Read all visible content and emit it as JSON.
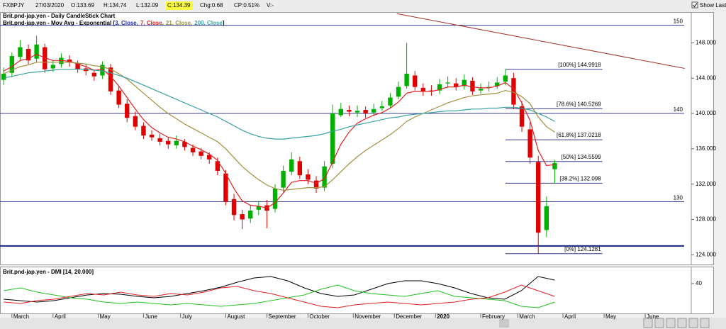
{
  "header": {
    "symbol": "FXBPJY",
    "date": "27/03/2020",
    "open": "O:133.69",
    "high": "H:134.74",
    "low": "L:132.09",
    "close": "C:134.39",
    "change": "Chg:0.68",
    "change_pct": "CP:0.51%",
    "volume": "V:-",
    "show_last": "Show Last"
  },
  "chart_data": [
    {
      "type": "candlestick",
      "title": "Brit.pnd-jap.yen - Daily CandleStick Chart",
      "overlay_title": "Brit.pnd-jap.yen - Mov Avg - Exponential [",
      "overlay_params": "3, Close,",
      "overlay_close": "]",
      "up_color": "#00b000",
      "down_color": "#e00000",
      "open": [
        143.8,
        144.6,
        146.4,
        147.3,
        146.2,
        147.5,
        145.1,
        145.6,
        146.1,
        145.7,
        145.1,
        144.6,
        144.3,
        145.2,
        142.6,
        141.1,
        139.7,
        138.6,
        137.6,
        137.2,
        136.9,
        136.4,
        136.8,
        136.1,
        135.7,
        135.3,
        134.6,
        133.2,
        130.3,
        128.6,
        128.1,
        129.1,
        129.6,
        129.2,
        131.6,
        133.4,
        134.6,
        133.1,
        132.4,
        131.6,
        134.3,
        139.8,
        140.4,
        140.1,
        140.4,
        140.1,
        140.6,
        140.9,
        141.9,
        143.1,
        144.3,
        142.9,
        142.6,
        142.6,
        143.4,
        143.4,
        143.1,
        143.7,
        142.6,
        142.9,
        143.1,
        143.6,
        144.0,
        140.8,
        138.2,
        134.5,
        126.8,
        133.69
      ],
      "high": [
        145.2,
        146.9,
        148.3,
        147.8,
        148.8,
        147.9,
        146.0,
        146.8,
        146.6,
        146.0,
        145.6,
        145.0,
        145.9,
        145.6,
        143.1,
        141.6,
        140.2,
        139.0,
        138.1,
        137.7,
        137.3,
        137.5,
        137.1,
        136.5,
        136.1,
        135.6,
        135.0,
        133.6,
        130.9,
        129.1,
        129.6,
        130.1,
        130.2,
        132.0,
        134.1,
        135.6,
        135.1,
        133.7,
        132.9,
        134.6,
        141.0,
        141.2,
        140.9,
        140.9,
        140.8,
        141.1,
        141.4,
        142.3,
        143.6,
        148.0,
        144.8,
        143.4,
        143.2,
        143.9,
        144.2,
        144.0,
        144.4,
        144.1,
        143.4,
        143.6,
        144.1,
        145.0,
        144.6,
        141.4,
        139.0,
        135.2,
        130.6,
        134.74
      ],
      "low": [
        143.2,
        144.1,
        145.9,
        145.6,
        145.8,
        144.6,
        144.7,
        145.2,
        145.3,
        144.6,
        144.3,
        143.7,
        143.9,
        142.1,
        140.6,
        139.0,
        138.1,
        137.1,
        136.9,
        136.4,
        136.0,
        136.0,
        135.8,
        135.2,
        134.8,
        134.3,
        133.0,
        129.6,
        127.9,
        126.9,
        127.6,
        128.5,
        127.0,
        128.8,
        131.1,
        133.0,
        132.6,
        132.0,
        131.0,
        131.2,
        133.8,
        139.6,
        139.7,
        139.6,
        139.5,
        139.7,
        140.3,
        140.6,
        141.6,
        142.8,
        142.6,
        142.0,
        142.0,
        142.2,
        142.9,
        142.6,
        142.7,
        142.1,
        142.2,
        142.5,
        142.8,
        143.2,
        140.5,
        137.9,
        134.3,
        124.13,
        126.0,
        132.09
      ],
      "close": [
        144.5,
        146.5,
        147.5,
        146.0,
        147.8,
        145.0,
        145.5,
        146.3,
        145.8,
        145.0,
        144.8,
        144.2,
        145.5,
        142.5,
        141.0,
        139.5,
        138.5,
        137.5,
        137.3,
        136.8,
        136.5,
        136.9,
        136.2,
        135.6,
        135.2,
        134.8,
        133.5,
        130.0,
        128.5,
        128.0,
        129.0,
        129.5,
        129.0,
        131.5,
        133.5,
        134.8,
        133.0,
        132.5,
        131.5,
        134.0,
        140.0,
        140.5,
        140.2,
        140.3,
        140.0,
        140.5,
        140.8,
        141.8,
        143.0,
        144.5,
        143.0,
        142.5,
        142.5,
        143.3,
        143.5,
        143.0,
        143.8,
        142.5,
        142.8,
        143.0,
        143.5,
        144.3,
        141.0,
        138.5,
        135.0,
        126.5,
        129.5,
        134.39
      ],
      "series": [
        {
          "name": "7, Close,",
          "color": "#e02020",
          "values": [
            144.8,
            145.3,
            146.0,
            146.2,
            146.7,
            146.3,
            146.0,
            146.0,
            145.9,
            145.6,
            145.3,
            144.9,
            145.0,
            144.2,
            143.1,
            141.8,
            140.5,
            139.3,
            138.4,
            137.8,
            137.3,
            137.1,
            136.8,
            136.3,
            135.9,
            135.4,
            134.7,
            133.2,
            131.5,
            130.1,
            129.6,
            129.5,
            129.3,
            129.9,
            131.0,
            132.2,
            132.4,
            132.4,
            132.1,
            132.6,
            134.5,
            136.5,
            137.9,
            138.9,
            139.4,
            139.8,
            140.1,
            140.6,
            141.3,
            142.3,
            142.5,
            142.5,
            142.5,
            142.7,
            143.0,
            143.0,
            143.2,
            143.0,
            142.9,
            142.9,
            143.1,
            143.5,
            142.8,
            141.2,
            139.2,
            135.8,
            134.1,
            134.2
          ]
        },
        {
          "name": "21, Close,",
          "color": "#a09040",
          "values": [
            144.5,
            144.9,
            145.3,
            145.5,
            145.8,
            145.8,
            145.8,
            145.8,
            145.8,
            145.7,
            145.6,
            145.4,
            145.3,
            145.0,
            144.5,
            143.9,
            143.1,
            142.3,
            141.5,
            140.7,
            140.0,
            139.4,
            138.8,
            138.3,
            137.8,
            137.3,
            136.8,
            136.0,
            135.0,
            134.0,
            133.2,
            132.5,
            131.9,
            131.5,
            131.3,
            131.4,
            131.5,
            131.6,
            131.6,
            131.7,
            132.5,
            133.4,
            134.3,
            135.1,
            135.8,
            136.4,
            137.0,
            137.6,
            138.3,
            139.1,
            139.6,
            140.0,
            140.4,
            140.8,
            141.2,
            141.5,
            141.8,
            142.0,
            142.1,
            142.2,
            142.3,
            142.6,
            142.4,
            141.9,
            141.1,
            139.6,
            138.5,
            137.9
          ]
        },
        {
          "name": "200, Close",
          "color": "#3aa0a0",
          "values": [
            144.0,
            144.2,
            144.4,
            144.6,
            144.7,
            144.8,
            144.9,
            145.0,
            145.0,
            145.0,
            145.0,
            144.9,
            144.8,
            144.6,
            144.3,
            144.0,
            143.6,
            143.2,
            142.8,
            142.4,
            142.0,
            141.6,
            141.2,
            140.8,
            140.4,
            140.0,
            139.6,
            139.1,
            138.6,
            138.1,
            137.7,
            137.4,
            137.2,
            137.1,
            137.1,
            137.2,
            137.3,
            137.4,
            137.5,
            137.7,
            138.0,
            138.2,
            138.5,
            138.7,
            138.9,
            139.1,
            139.3,
            139.5,
            139.6,
            139.8,
            139.9,
            140.0,
            140.1,
            140.2,
            140.3,
            140.3,
            140.4,
            140.5,
            140.5,
            140.6,
            140.6,
            140.7,
            140.7,
            140.6,
            140.4,
            140.0,
            139.6,
            139.1
          ]
        }
      ],
      "xlim": [
        -0.45,
        83.6
      ],
      "xticks": [
        {
          "value": 1,
          "label": "March"
        },
        {
          "value": 6,
          "label": "April"
        },
        {
          "value": 11.5,
          "label": "May"
        },
        {
          "value": 17,
          "label": "June"
        },
        {
          "value": 21.5,
          "label": "July"
        },
        {
          "value": 27,
          "label": "August"
        },
        {
          "value": 32,
          "label": "September"
        },
        {
          "value": 37,
          "label": "October"
        },
        {
          "value": 42.5,
          "label": "November"
        },
        {
          "value": 47.5,
          "label": "December"
        },
        {
          "value": 52.5,
          "label": "2020"
        },
        {
          "value": 58,
          "label": "February"
        },
        {
          "value": 62.5,
          "label": "March"
        },
        {
          "value": 68,
          "label": "April"
        },
        {
          "value": 73,
          "label": "May"
        },
        {
          "value": 78,
          "label": "June"
        }
      ],
      "ylim": [
        122.9,
        151.4
      ],
      "yticks": [
        {
          "value": 124,
          "label": "124.000"
        },
        {
          "value": 128,
          "label": "128.000"
        },
        {
          "value": 132,
          "label": "132.000"
        },
        {
          "value": 136,
          "label": "136.000"
        },
        {
          "value": 140,
          "label": "140.000"
        },
        {
          "value": 144,
          "label": "144.000"
        },
        {
          "value": 148,
          "label": "148.000"
        }
      ],
      "hlines": [
        150,
        140,
        130
      ],
      "hline_color": "#3a3f8f",
      "support_line": 125,
      "trend_line": {
        "x": [
          47.8,
          82.8
        ],
        "y": [
          151.3,
          145.1
        ],
        "color": "#a0302a"
      },
      "fib_x": [
        61,
        72.8
      ],
      "fib_levels": [
        {
          "value": 144.9918,
          "label": "[100%] 144.9918"
        },
        {
          "value": 140.5269,
          "label": "[78.6%] 140.5269"
        },
        {
          "value": 137.0218,
          "label": "[61.8%] 137.0218"
        },
        {
          "value": 134.5599,
          "label": "[50%] 134.5599"
        },
        {
          "value": 132.098,
          "label": "[38.2%] 132.098"
        },
        {
          "value": 124.1281,
          "label": "[0%] 124.1281"
        }
      ]
    },
    {
      "type": "line",
      "title": "Brit.pnd-jap.yen - DMI [14, 20.000]",
      "series": [
        {
          "color": "#000000",
          "values": [
            18,
            16,
            14,
            16,
            20,
            24,
            26,
            25,
            22,
            20,
            22,
            26,
            30,
            35,
            42,
            48,
            50,
            44,
            34,
            26,
            22,
            24,
            32,
            40,
            44,
            44,
            40,
            34,
            26,
            20,
            18,
            30,
            50,
            45
          ]
        },
        {
          "color": "#20c020",
          "values": [
            30,
            34,
            28,
            24,
            20,
            18,
            14,
            12,
            14,
            12,
            10,
            12,
            10,
            8,
            10,
            12,
            16,
            20,
            24,
            32,
            38,
            30,
            26,
            24,
            22,
            26,
            30,
            22,
            20,
            18,
            16,
            8,
            6,
            14
          ]
        },
        {
          "color": "#e02020",
          "values": [
            14,
            12,
            16,
            18,
            22,
            26,
            24,
            28,
            24,
            22,
            26,
            24,
            28,
            34,
            36,
            30,
            26,
            20,
            14,
            8,
            6,
            10,
            12,
            14,
            12,
            10,
            12,
            14,
            18,
            20,
            28,
            38,
            30,
            22
          ]
        }
      ],
      "ylim": [
        0,
        63
      ],
      "yticks": [
        40
      ]
    }
  ]
}
